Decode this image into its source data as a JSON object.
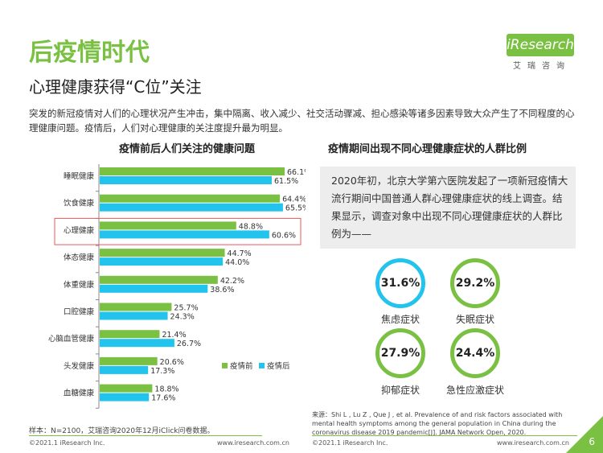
{
  "header": {
    "title": "后疫情时代",
    "subtitle": "心理健康获得“C位”关注",
    "intro": "突发的新冠疫情对人们的心理状况产生冲击，集中隔离、收入减少、社交活动骤减、担心感染等诸多因素导致大众产生了不同程度的心理健康问题。疫情后，人们对心理健康的关注度提升最为明显。"
  },
  "logo": {
    "text": "iResearch",
    "cn": "艾瑞咨询"
  },
  "colors": {
    "before": "#7ac143",
    "after": "#22c4ee",
    "highlight": "#e8595a"
  },
  "chart_data": [
    {
      "type": "bar",
      "orientation": "horizontal",
      "title": "疫情前后人们关注的健康问题",
      "categories": [
        "睡眠健康",
        "饮食健康",
        "心理健康",
        "体态健康",
        "体重健康",
        "口腔健康",
        "心脑血管健康",
        "头发健康",
        "血糖健康"
      ],
      "series": [
        {
          "name": "疫情前",
          "values": [
            66.1,
            64.4,
            48.8,
            44.7,
            42.2,
            25.7,
            21.4,
            20.6,
            18.8
          ]
        },
        {
          "name": "疫情后",
          "values": [
            61.5,
            65.5,
            60.6,
            44.0,
            38.6,
            24.3,
            26.7,
            17.3,
            17.6
          ]
        }
      ],
      "unit": "%",
      "highlight_category": "心理健康",
      "legend_position": "bottom-right",
      "grid": false
    },
    {
      "type": "table",
      "title": "疫情期间出现不同心理健康症状的人群比例",
      "categories": [
        "焦虑症状",
        "失眠症状",
        "抑郁症状",
        "急性应激症状"
      ],
      "values": [
        31.6,
        29.2,
        27.9,
        24.4
      ],
      "unit": "%"
    }
  ],
  "survey_text": "2020年初，北京大学第六医院发起了一项新冠疫情大流行期间中国普通人群心理健康症状的线上调查。结果显示，调查对象中出现不同心理健康症状的人群比例为——",
  "circles": [
    {
      "value": "31.6%",
      "label": "焦虑症状",
      "color": "blue"
    },
    {
      "value": "29.2%",
      "label": "失眠症状",
      "color": "green"
    },
    {
      "value": "27.9%",
      "label": "抑郁症状",
      "color": "green"
    },
    {
      "value": "24.4%",
      "label": "急性应激症状",
      "color": "green"
    }
  ],
  "sample_note": "样本：N=2100，艾瑞咨询2020年12月iClick问卷数据。",
  "source_note": "来源：Shi L , Lu Z , Que J , et al. Prevalence of and risk factors associated with mental health symptoms among the general population in China during the coronavirus disease 2019 pandemic[J]. JAMA Network Open, 2020.",
  "footer": {
    "copyright_left": "©2021.1 iResearch Inc.",
    "url_left": "www.iresearch.com.cn",
    "copyright_right": "©2021.1 iResearch Inc.",
    "url_right": "www.iresearch.com.cn",
    "page": "6"
  }
}
